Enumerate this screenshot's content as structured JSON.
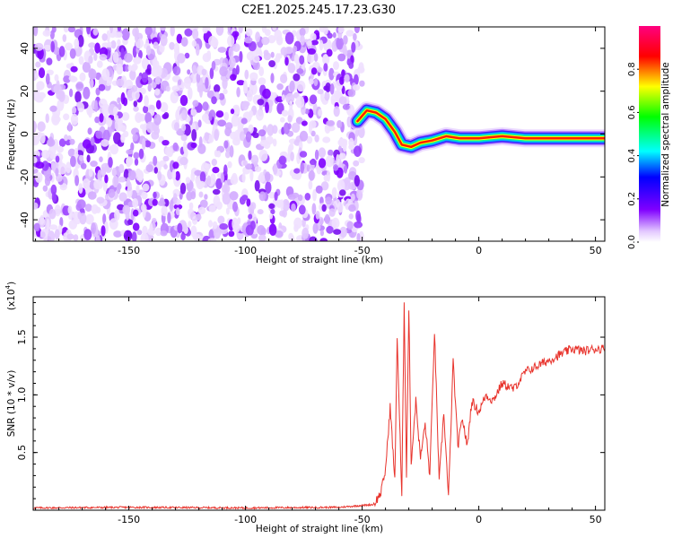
{
  "title": "C2E1.2025.245.17.23.G30",
  "chart_data": [
    {
      "type": "heatmap",
      "xlabel": "Height of straight line (km)",
      "ylabel": "Frequency (Hz)",
      "xlim": [
        -191,
        54
      ],
      "ylim": [
        -50,
        50
      ],
      "x_ticks": [
        -150,
        -100,
        -50,
        0,
        50
      ],
      "y_ticks": [
        -40,
        -20,
        0,
        20,
        40
      ],
      "noise_region": {
        "x_range": [
          -191,
          -50
        ],
        "y_range": [
          -50,
          50
        ]
      },
      "ridge": [
        {
          "x": -52,
          "y": 6
        },
        {
          "x": -48,
          "y": 11
        },
        {
          "x": -44,
          "y": 10
        },
        {
          "x": -40,
          "y": 7
        },
        {
          "x": -36,
          "y": 1
        },
        {
          "x": -33,
          "y": -5
        },
        {
          "x": -29,
          "y": -6
        },
        {
          "x": -25,
          "y": -4
        },
        {
          "x": -20,
          "y": -3
        },
        {
          "x": -14,
          "y": -1
        },
        {
          "x": -8,
          "y": -2
        },
        {
          "x": 0,
          "y": -2
        },
        {
          "x": 10,
          "y": -1
        },
        {
          "x": 20,
          "y": -2
        },
        {
          "x": 30,
          "y": -2
        },
        {
          "x": 40,
          "y": -2
        },
        {
          "x": 54,
          "y": -2
        }
      ],
      "colorbar": {
        "label": "Normalized spectral amplitude",
        "range": [
          0,
          1
        ],
        "ticks": [
          "0.0",
          "0.2",
          "0.4",
          "0.6",
          "0.8"
        ]
      }
    },
    {
      "type": "line",
      "xlabel": "Height of straight line (km)",
      "ylabel": "SNR (10 * v/v)",
      "y_multiplier": "(x10",
      "y_multiplier_exp": "4",
      "xlim": [
        -191,
        54
      ],
      "ylim": [
        0,
        1.85
      ],
      "x_ticks": [
        -150,
        -100,
        -50,
        0,
        50
      ],
      "y_ticks": [
        "0.5",
        "1.0",
        "1.5"
      ],
      "color": "#e8332c",
      "series": [
        {
          "x": [
            -191,
            -150,
            -100,
            -60,
            -45,
            -42,
            -40,
            -38,
            -36,
            -35,
            -33,
            -32,
            -31,
            -30,
            -29,
            -27,
            -25,
            -23,
            -21,
            -19,
            -17,
            -15,
            -13,
            -11,
            -9,
            -7,
            -5,
            -3,
            0,
            3,
            6,
            10,
            15,
            20,
            25,
            30,
            35,
            40,
            45,
            50,
            54
          ],
          "y": [
            0.02,
            0.025,
            0.02,
            0.025,
            0.05,
            0.15,
            0.35,
            0.9,
            0.25,
            1.5,
            0.1,
            1.8,
            0.3,
            1.75,
            0.4,
            0.95,
            0.45,
            0.75,
            0.3,
            1.55,
            0.25,
            0.85,
            0.1,
            1.3,
            0.55,
            0.8,
            0.55,
            0.95,
            0.85,
            1.0,
            0.95,
            1.1,
            1.05,
            1.2,
            1.25,
            1.3,
            1.35,
            1.4,
            1.38,
            1.4,
            1.4
          ]
        }
      ]
    }
  ]
}
